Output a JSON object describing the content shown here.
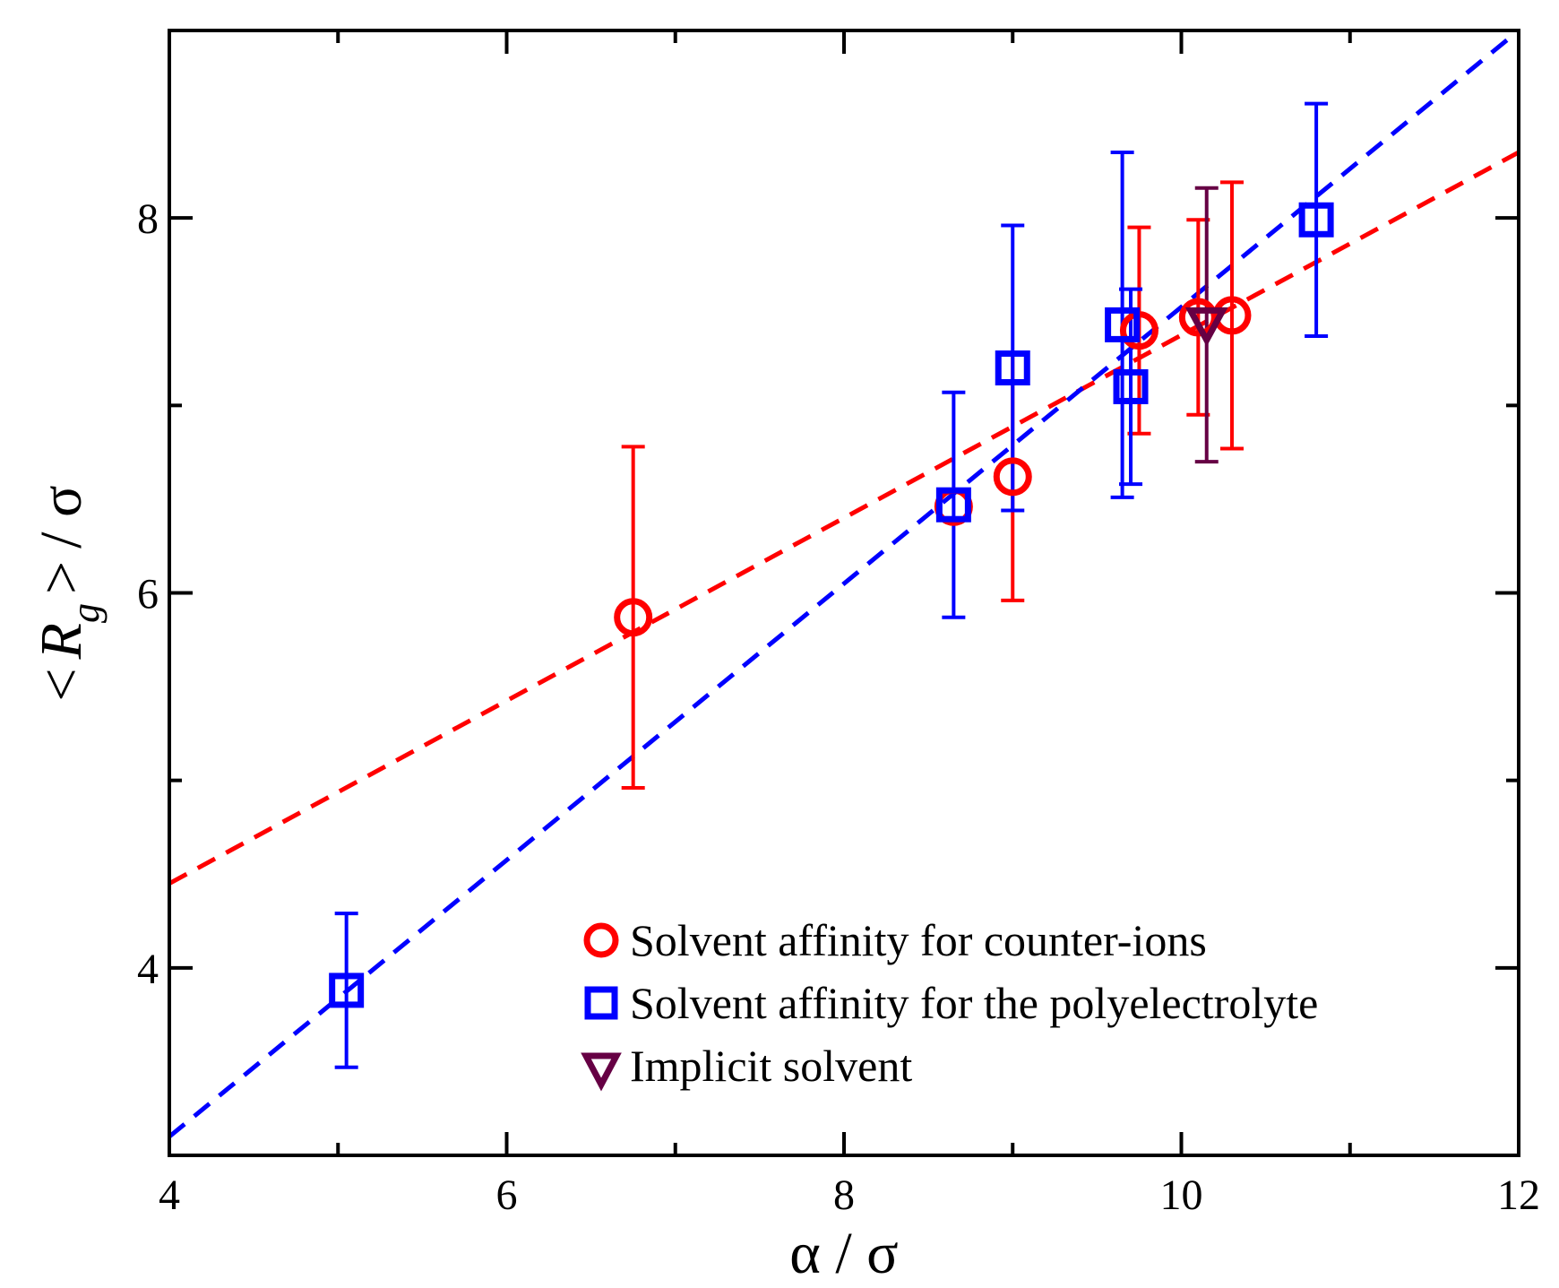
{
  "chart_data": {
    "type": "scatter",
    "title": "",
    "xlabel": "α / σ",
    "ylabel": {
      "open": "<",
      "symbol": "R",
      "subscript": "g",
      "close": ">",
      "unit": "/ σ"
    },
    "xlim": [
      4,
      12
    ],
    "ylim": [
      3,
      9
    ],
    "x_major_ticks": [
      4,
      6,
      8,
      10,
      12
    ],
    "x_tick_labels": [
      "4",
      "6",
      "8",
      "10",
      "12"
    ],
    "x_minor_ticks": [
      5,
      7,
      9,
      11
    ],
    "y_major_ticks": [
      4,
      6,
      8
    ],
    "y_tick_labels": [
      "4",
      "6",
      "8"
    ],
    "y_minor_ticks": [
      5,
      7
    ],
    "grid": false,
    "legend_position": "bottom-right",
    "series": [
      {
        "name": "Solvent affinity for counter-ions",
        "marker": "circle",
        "color": "#ff0000",
        "points": [
          {
            "x": 6.75,
            "y": 5.87,
            "err": 0.91
          },
          {
            "x": 8.65,
            "y": 6.46,
            "err": 0.0
          },
          {
            "x": 9.0,
            "y": 6.62,
            "err": 0.66
          },
          {
            "x": 9.75,
            "y": 7.4,
            "err": 0.55
          },
          {
            "x": 10.1,
            "y": 7.47,
            "err": 0.52
          },
          {
            "x": 10.3,
            "y": 7.48,
            "err": 0.71
          }
        ],
        "fit_line": [
          [
            4,
            4.45
          ],
          [
            12,
            8.35
          ]
        ]
      },
      {
        "name": "Solvent affinity for the polyelectrolyte",
        "marker": "square",
        "color": "#0000ff",
        "points": [
          {
            "x": 5.05,
            "y": 3.88,
            "err": 0.41
          },
          {
            "x": 8.65,
            "y": 6.47,
            "err": 0.6
          },
          {
            "x": 9.0,
            "y": 7.2,
            "err": 0.76
          },
          {
            "x": 9.65,
            "y": 7.43,
            "err": 0.92
          },
          {
            "x": 9.7,
            "y": 7.1,
            "err": 0.52
          },
          {
            "x": 10.8,
            "y": 7.99,
            "err": 0.62
          }
        ],
        "fit_line": [
          [
            4,
            3.1
          ],
          [
            12,
            9.0
          ]
        ]
      },
      {
        "name": "Implicit solvent",
        "marker": "triangle-down",
        "color": "#660044",
        "points": [
          {
            "x": 10.15,
            "y": 7.43,
            "err": 0.73
          }
        ]
      }
    ]
  }
}
